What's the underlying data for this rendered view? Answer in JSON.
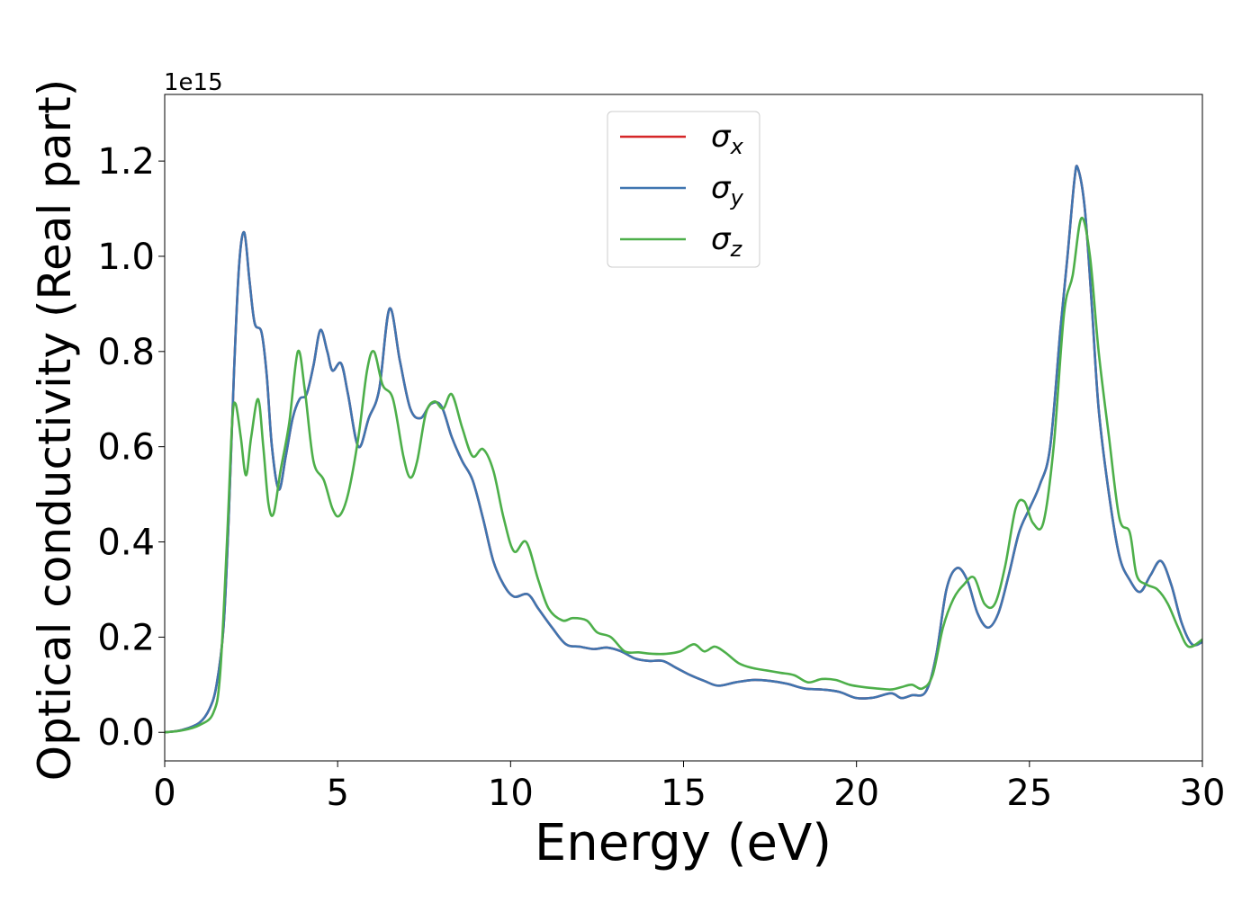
{
  "chart_data": {
    "type": "line",
    "xlabel": "Energy (eV)",
    "ylabel": "Optical conductivity (Real part)",
    "offset_text": "1e15",
    "xlim": [
      0,
      30
    ],
    "ylim": [
      -0.06,
      1.34
    ],
    "x_ticks": [
      0,
      5,
      10,
      15,
      20,
      25,
      30
    ],
    "x_tick_labels": [
      "0",
      "5",
      "10",
      "15",
      "20",
      "25",
      "30"
    ],
    "y_ticks": [
      0.0,
      0.2,
      0.4,
      0.6,
      0.8,
      1.0,
      1.2
    ],
    "y_tick_labels": [
      "0.0",
      "0.2",
      "0.4",
      "0.6",
      "0.8",
      "1.0",
      "1.2"
    ],
    "grid": false,
    "legend_position": "upper center",
    "series": [
      {
        "name": "σx",
        "symbol": "σ",
        "subscript": "x",
        "color": "#d62728",
        "points": [
          [
            0,
            0.0
          ],
          [
            0.5,
            0.005
          ],
          [
            1.0,
            0.02
          ],
          [
            1.3,
            0.05
          ],
          [
            1.5,
            0.1
          ],
          [
            1.7,
            0.22
          ],
          [
            1.85,
            0.45
          ],
          [
            2.0,
            0.75
          ],
          [
            2.15,
            0.98
          ],
          [
            2.3,
            1.05
          ],
          [
            2.45,
            0.95
          ],
          [
            2.6,
            0.86
          ],
          [
            2.8,
            0.84
          ],
          [
            2.95,
            0.75
          ],
          [
            3.1,
            0.6
          ],
          [
            3.3,
            0.51
          ],
          [
            3.5,
            0.58
          ],
          [
            3.7,
            0.66
          ],
          [
            3.9,
            0.7
          ],
          [
            4.1,
            0.71
          ],
          [
            4.3,
            0.77
          ],
          [
            4.5,
            0.845
          ],
          [
            4.7,
            0.8
          ],
          [
            4.85,
            0.76
          ],
          [
            5.1,
            0.775
          ],
          [
            5.3,
            0.71
          ],
          [
            5.6,
            0.6
          ],
          [
            5.9,
            0.66
          ],
          [
            6.2,
            0.72
          ],
          [
            6.5,
            0.89
          ],
          [
            6.8,
            0.78
          ],
          [
            7.1,
            0.68
          ],
          [
            7.4,
            0.66
          ],
          [
            7.7,
            0.69
          ],
          [
            8.0,
            0.685
          ],
          [
            8.3,
            0.62
          ],
          [
            8.6,
            0.57
          ],
          [
            8.9,
            0.53
          ],
          [
            9.2,
            0.45
          ],
          [
            9.5,
            0.36
          ],
          [
            9.8,
            0.31
          ],
          [
            10.1,
            0.285
          ],
          [
            10.5,
            0.29
          ],
          [
            10.8,
            0.26
          ],
          [
            11.2,
            0.22
          ],
          [
            11.6,
            0.185
          ],
          [
            12.0,
            0.18
          ],
          [
            12.4,
            0.175
          ],
          [
            12.8,
            0.178
          ],
          [
            13.2,
            0.17
          ],
          [
            13.6,
            0.155
          ],
          [
            14.0,
            0.15
          ],
          [
            14.4,
            0.15
          ],
          [
            14.8,
            0.135
          ],
          [
            15.2,
            0.12
          ],
          [
            15.6,
            0.108
          ],
          [
            16.0,
            0.098
          ],
          [
            16.5,
            0.105
          ],
          [
            17.0,
            0.11
          ],
          [
            17.5,
            0.108
          ],
          [
            18.0,
            0.102
          ],
          [
            18.5,
            0.092
          ],
          [
            19.0,
            0.09
          ],
          [
            19.5,
            0.085
          ],
          [
            20.0,
            0.072
          ],
          [
            20.5,
            0.073
          ],
          [
            21.0,
            0.082
          ],
          [
            21.3,
            0.072
          ],
          [
            21.6,
            0.078
          ],
          [
            22.0,
            0.085
          ],
          [
            22.3,
            0.16
          ],
          [
            22.6,
            0.3
          ],
          [
            22.9,
            0.345
          ],
          [
            23.2,
            0.32
          ],
          [
            23.5,
            0.25
          ],
          [
            23.8,
            0.22
          ],
          [
            24.1,
            0.25
          ],
          [
            24.4,
            0.33
          ],
          [
            24.7,
            0.42
          ],
          [
            25.0,
            0.47
          ],
          [
            25.3,
            0.52
          ],
          [
            25.6,
            0.6
          ],
          [
            25.9,
            0.85
          ],
          [
            26.1,
            1.0
          ],
          [
            26.3,
            1.16
          ],
          [
            26.4,
            1.185
          ],
          [
            26.6,
            1.1
          ],
          [
            26.8,
            0.9
          ],
          [
            27.0,
            0.68
          ],
          [
            27.3,
            0.5
          ],
          [
            27.6,
            0.37
          ],
          [
            27.9,
            0.32
          ],
          [
            28.2,
            0.295
          ],
          [
            28.5,
            0.33
          ],
          [
            28.8,
            0.36
          ],
          [
            29.1,
            0.31
          ],
          [
            29.4,
            0.23
          ],
          [
            29.7,
            0.185
          ],
          [
            30.0,
            0.19
          ]
        ]
      },
      {
        "name": "σy",
        "symbol": "σ",
        "subscript": "y",
        "color": "#3f75b0",
        "points": [
          [
            0,
            0.0
          ],
          [
            0.5,
            0.005
          ],
          [
            1.0,
            0.02
          ],
          [
            1.3,
            0.05
          ],
          [
            1.5,
            0.1
          ],
          [
            1.7,
            0.22
          ],
          [
            1.85,
            0.45
          ],
          [
            2.0,
            0.75
          ],
          [
            2.15,
            0.98
          ],
          [
            2.3,
            1.05
          ],
          [
            2.45,
            0.95
          ],
          [
            2.6,
            0.86
          ],
          [
            2.8,
            0.84
          ],
          [
            2.95,
            0.75
          ],
          [
            3.1,
            0.6
          ],
          [
            3.3,
            0.51
          ],
          [
            3.5,
            0.58
          ],
          [
            3.7,
            0.66
          ],
          [
            3.9,
            0.7
          ],
          [
            4.1,
            0.71
          ],
          [
            4.3,
            0.77
          ],
          [
            4.5,
            0.845
          ],
          [
            4.7,
            0.8
          ],
          [
            4.85,
            0.76
          ],
          [
            5.1,
            0.775
          ],
          [
            5.3,
            0.71
          ],
          [
            5.6,
            0.6
          ],
          [
            5.9,
            0.66
          ],
          [
            6.2,
            0.72
          ],
          [
            6.5,
            0.89
          ],
          [
            6.8,
            0.78
          ],
          [
            7.1,
            0.68
          ],
          [
            7.4,
            0.66
          ],
          [
            7.7,
            0.69
          ],
          [
            8.0,
            0.685
          ],
          [
            8.3,
            0.62
          ],
          [
            8.6,
            0.57
          ],
          [
            8.9,
            0.53
          ],
          [
            9.2,
            0.45
          ],
          [
            9.5,
            0.36
          ],
          [
            9.8,
            0.31
          ],
          [
            10.1,
            0.285
          ],
          [
            10.5,
            0.29
          ],
          [
            10.8,
            0.26
          ],
          [
            11.2,
            0.22
          ],
          [
            11.6,
            0.185
          ],
          [
            12.0,
            0.18
          ],
          [
            12.4,
            0.175
          ],
          [
            12.8,
            0.178
          ],
          [
            13.2,
            0.17
          ],
          [
            13.6,
            0.155
          ],
          [
            14.0,
            0.15
          ],
          [
            14.4,
            0.15
          ],
          [
            14.8,
            0.135
          ],
          [
            15.2,
            0.12
          ],
          [
            15.6,
            0.108
          ],
          [
            16.0,
            0.098
          ],
          [
            16.5,
            0.105
          ],
          [
            17.0,
            0.11
          ],
          [
            17.5,
            0.108
          ],
          [
            18.0,
            0.102
          ],
          [
            18.5,
            0.092
          ],
          [
            19.0,
            0.09
          ],
          [
            19.5,
            0.085
          ],
          [
            20.0,
            0.072
          ],
          [
            20.5,
            0.073
          ],
          [
            21.0,
            0.082
          ],
          [
            21.3,
            0.072
          ],
          [
            21.6,
            0.078
          ],
          [
            22.0,
            0.085
          ],
          [
            22.3,
            0.16
          ],
          [
            22.6,
            0.3
          ],
          [
            22.9,
            0.345
          ],
          [
            23.2,
            0.32
          ],
          [
            23.5,
            0.25
          ],
          [
            23.8,
            0.22
          ],
          [
            24.1,
            0.25
          ],
          [
            24.4,
            0.33
          ],
          [
            24.7,
            0.42
          ],
          [
            25.0,
            0.47
          ],
          [
            25.3,
            0.52
          ],
          [
            25.6,
            0.6
          ],
          [
            25.9,
            0.85
          ],
          [
            26.1,
            1.0
          ],
          [
            26.3,
            1.16
          ],
          [
            26.4,
            1.185
          ],
          [
            26.6,
            1.1
          ],
          [
            26.8,
            0.9
          ],
          [
            27.0,
            0.68
          ],
          [
            27.3,
            0.5
          ],
          [
            27.6,
            0.37
          ],
          [
            27.9,
            0.32
          ],
          [
            28.2,
            0.295
          ],
          [
            28.5,
            0.33
          ],
          [
            28.8,
            0.36
          ],
          [
            29.1,
            0.31
          ],
          [
            29.4,
            0.23
          ],
          [
            29.7,
            0.185
          ],
          [
            30.0,
            0.19
          ]
        ]
      },
      {
        "name": "σz",
        "symbol": "σ",
        "subscript": "z",
        "color": "#4daf4a",
        "points": [
          [
            0,
            0.0
          ],
          [
            0.5,
            0.004
          ],
          [
            1.0,
            0.015
          ],
          [
            1.4,
            0.04
          ],
          [
            1.6,
            0.12
          ],
          [
            1.8,
            0.4
          ],
          [
            1.95,
            0.65
          ],
          [
            2.05,
            0.69
          ],
          [
            2.2,
            0.62
          ],
          [
            2.35,
            0.54
          ],
          [
            2.5,
            0.62
          ],
          [
            2.7,
            0.7
          ],
          [
            2.85,
            0.6
          ],
          [
            3.0,
            0.48
          ],
          [
            3.15,
            0.46
          ],
          [
            3.35,
            0.55
          ],
          [
            3.6,
            0.65
          ],
          [
            3.85,
            0.8
          ],
          [
            4.05,
            0.72
          ],
          [
            4.3,
            0.57
          ],
          [
            4.6,
            0.53
          ],
          [
            4.85,
            0.47
          ],
          [
            5.05,
            0.455
          ],
          [
            5.3,
            0.5
          ],
          [
            5.6,
            0.62
          ],
          [
            5.85,
            0.76
          ],
          [
            6.05,
            0.8
          ],
          [
            6.3,
            0.73
          ],
          [
            6.6,
            0.7
          ],
          [
            6.9,
            0.58
          ],
          [
            7.1,
            0.535
          ],
          [
            7.3,
            0.57
          ],
          [
            7.55,
            0.67
          ],
          [
            7.8,
            0.695
          ],
          [
            8.05,
            0.68
          ],
          [
            8.3,
            0.71
          ],
          [
            8.6,
            0.64
          ],
          [
            8.9,
            0.58
          ],
          [
            9.2,
            0.595
          ],
          [
            9.5,
            0.55
          ],
          [
            9.8,
            0.45
          ],
          [
            10.1,
            0.38
          ],
          [
            10.45,
            0.4
          ],
          [
            10.8,
            0.32
          ],
          [
            11.1,
            0.26
          ],
          [
            11.5,
            0.235
          ],
          [
            11.8,
            0.24
          ],
          [
            12.2,
            0.235
          ],
          [
            12.5,
            0.21
          ],
          [
            12.9,
            0.2
          ],
          [
            13.3,
            0.17
          ],
          [
            13.7,
            0.168
          ],
          [
            14.1,
            0.165
          ],
          [
            14.5,
            0.165
          ],
          [
            14.9,
            0.17
          ],
          [
            15.3,
            0.185
          ],
          [
            15.6,
            0.17
          ],
          [
            15.9,
            0.18
          ],
          [
            16.2,
            0.168
          ],
          [
            16.6,
            0.145
          ],
          [
            17.0,
            0.135
          ],
          [
            17.4,
            0.13
          ],
          [
            17.8,
            0.125
          ],
          [
            18.2,
            0.12
          ],
          [
            18.6,
            0.105
          ],
          [
            19.0,
            0.112
          ],
          [
            19.4,
            0.11
          ],
          [
            19.8,
            0.1
          ],
          [
            20.2,
            0.095
          ],
          [
            20.6,
            0.092
          ],
          [
            21.0,
            0.09
          ],
          [
            21.3,
            0.095
          ],
          [
            21.6,
            0.1
          ],
          [
            21.9,
            0.092
          ],
          [
            22.2,
            0.12
          ],
          [
            22.5,
            0.22
          ],
          [
            22.8,
            0.28
          ],
          [
            23.1,
            0.31
          ],
          [
            23.4,
            0.325
          ],
          [
            23.7,
            0.27
          ],
          [
            24.0,
            0.27
          ],
          [
            24.3,
            0.35
          ],
          [
            24.6,
            0.47
          ],
          [
            24.85,
            0.485
          ],
          [
            25.1,
            0.44
          ],
          [
            25.4,
            0.44
          ],
          [
            25.7,
            0.6
          ],
          [
            26.0,
            0.88
          ],
          [
            26.25,
            0.96
          ],
          [
            26.5,
            1.08
          ],
          [
            26.75,
            1.0
          ],
          [
            27.0,
            0.8
          ],
          [
            27.3,
            0.62
          ],
          [
            27.6,
            0.45
          ],
          [
            27.9,
            0.42
          ],
          [
            28.1,
            0.33
          ],
          [
            28.4,
            0.31
          ],
          [
            28.7,
            0.3
          ],
          [
            29.0,
            0.27
          ],
          [
            29.3,
            0.22
          ],
          [
            29.6,
            0.18
          ],
          [
            30.0,
            0.195
          ]
        ]
      }
    ]
  }
}
